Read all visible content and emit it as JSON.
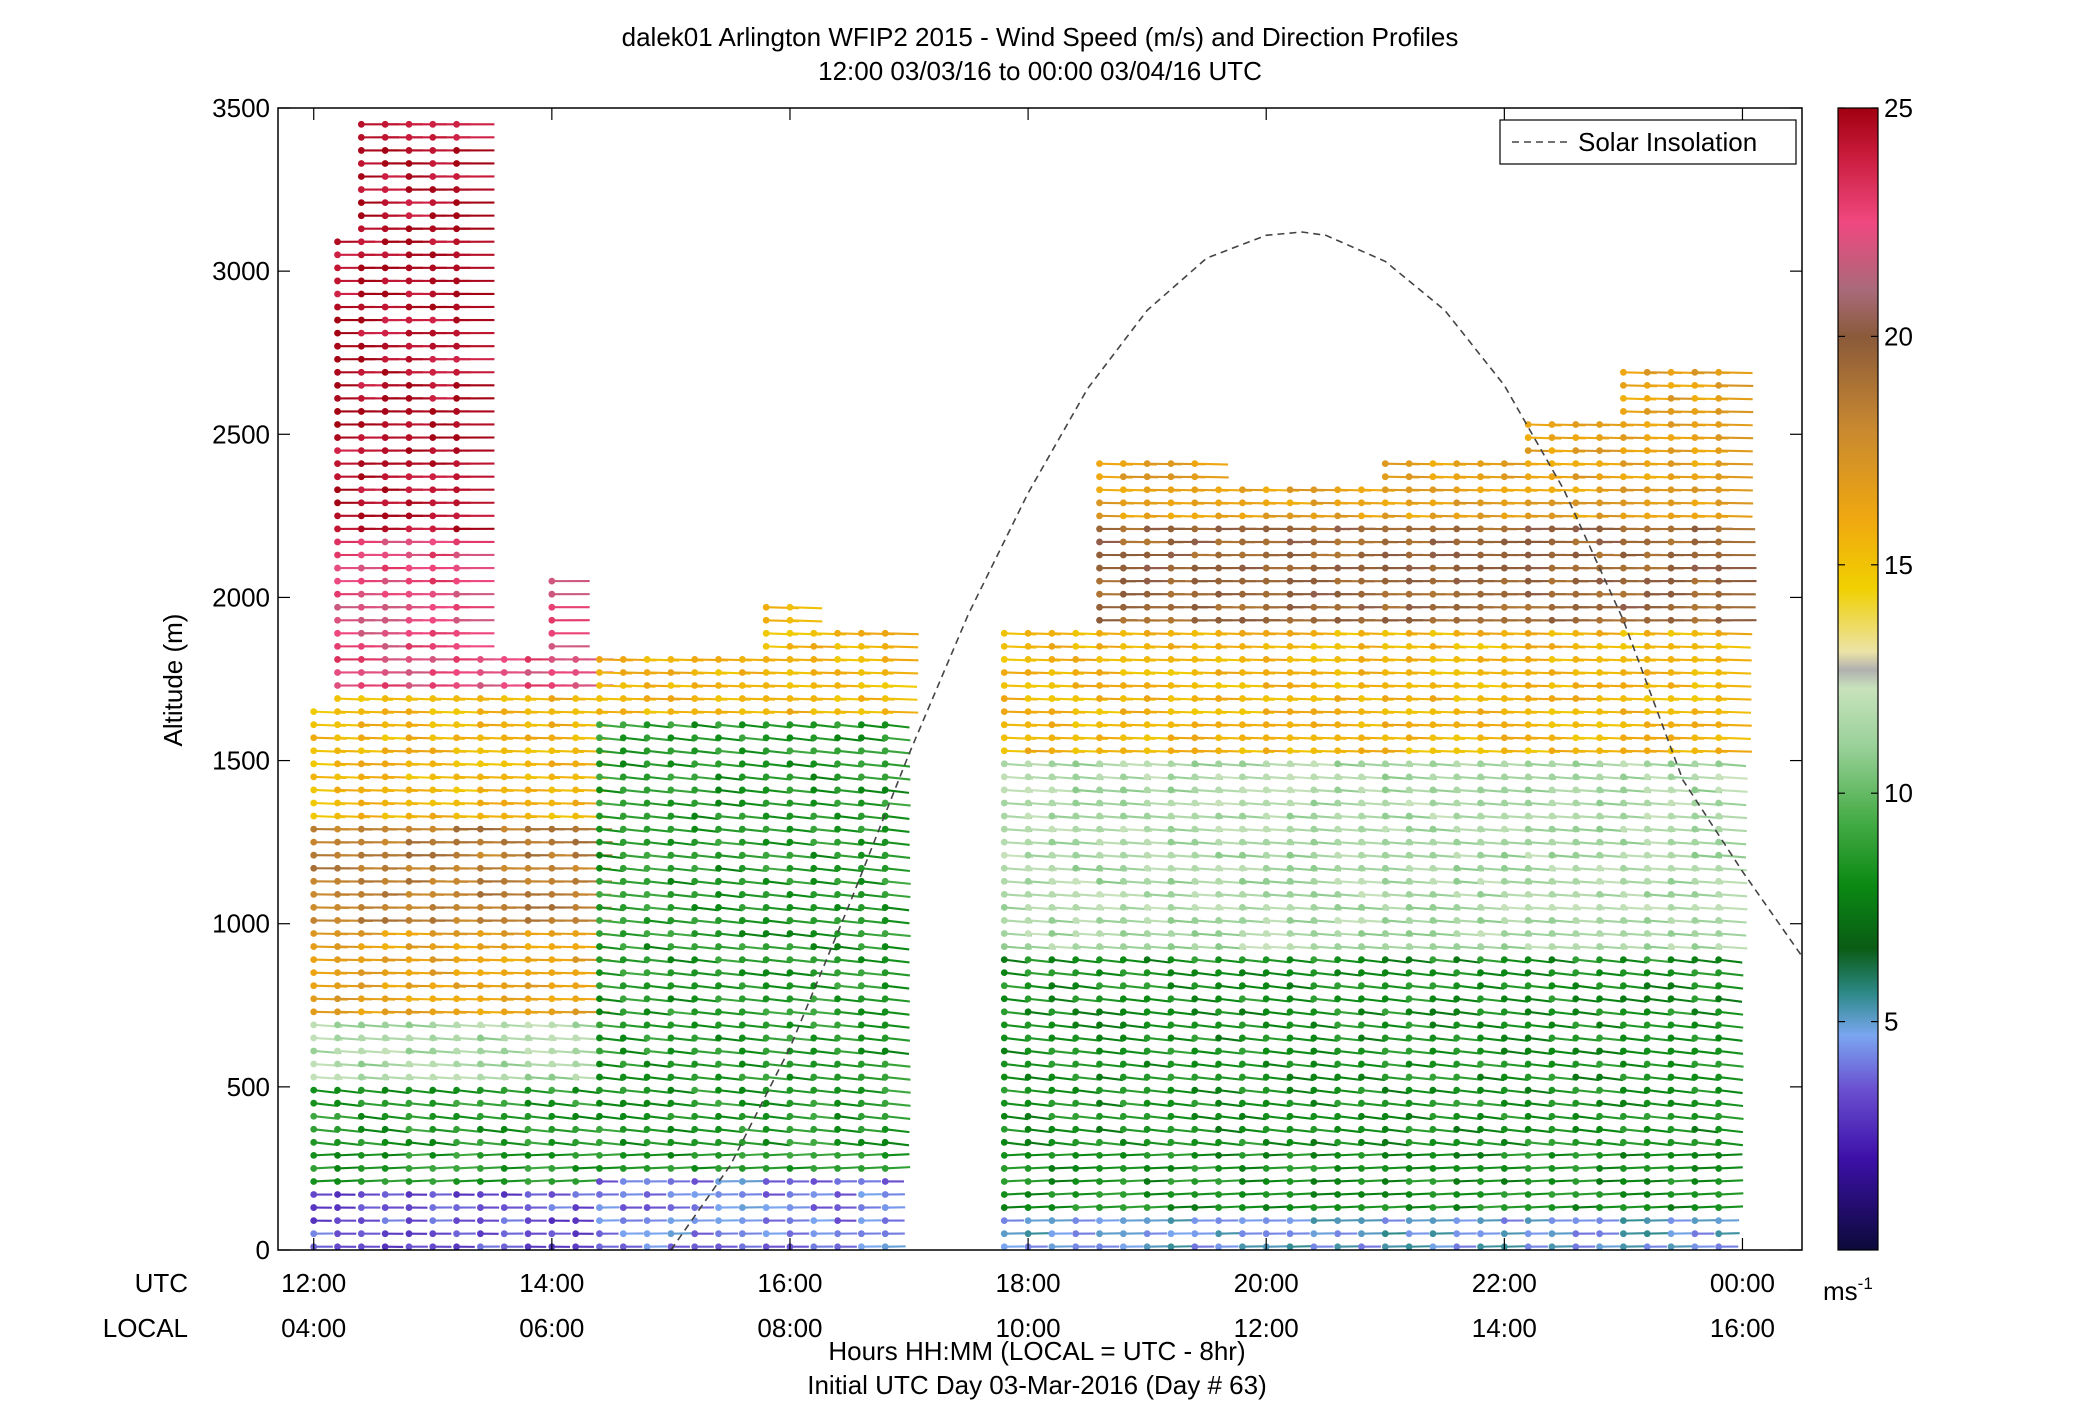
{
  "chart_data": {
    "type": "wind-barb-profile",
    "title": "dalek01 Arlington WFIP2 2015 - Wind Speed (m/s) and Direction Profiles",
    "subtitle": "12:00 03/03/16 to 00:00 03/04/16  UTC",
    "ylabel": "Altitude (m)",
    "ylim": [
      0,
      3500
    ],
    "yticks": [
      0,
      500,
      1000,
      1500,
      2000,
      2500,
      3000,
      3500
    ],
    "xlim_hours": [
      11.7,
      24.5
    ],
    "x_row_labels": [
      "UTC",
      "LOCAL"
    ],
    "xticks": [
      {
        "hour": 12,
        "utc": "12:00",
        "local": "04:00"
      },
      {
        "hour": 14,
        "utc": "14:00",
        "local": "06:00"
      },
      {
        "hour": 16,
        "utc": "16:00",
        "local": "08:00"
      },
      {
        "hour": 18,
        "utc": "18:00",
        "local": "10:00"
      },
      {
        "hour": 20,
        "utc": "20:00",
        "local": "12:00"
      },
      {
        "hour": 22,
        "utc": "22:00",
        "local": "14:00"
      },
      {
        "hour": 24,
        "utc": "00:00",
        "local": "16:00"
      }
    ],
    "xlabel": "Hours HH:MM  (LOCAL = UTC - 8hr)",
    "xlabel2": "Initial UTC Day 03-Mar-2016 (Day # 63)",
    "legend": {
      "label": "Solar Insolation",
      "placement": "top-right"
    },
    "colorbar": {
      "min": 0,
      "max": 25,
      "ticks": [
        5,
        10,
        15,
        20,
        25
      ],
      "unit_base": "ms",
      "unit_exp": "-1",
      "stops": [
        {
          "v": 0,
          "color": "#0c0a3a"
        },
        {
          "v": 2,
          "color": "#3c10a8"
        },
        {
          "v": 3.5,
          "color": "#6a4fd0"
        },
        {
          "v": 4.7,
          "color": "#7aa6f0"
        },
        {
          "v": 5.6,
          "color": "#2e8a8a"
        },
        {
          "v": 6.6,
          "color": "#0a5c14"
        },
        {
          "v": 8,
          "color": "#0b8a14"
        },
        {
          "v": 9.5,
          "color": "#4aae4a"
        },
        {
          "v": 11,
          "color": "#98d098"
        },
        {
          "v": 12.3,
          "color": "#c8e2bc"
        },
        {
          "v": 12.7,
          "color": "#b0b0b0"
        },
        {
          "v": 13.1,
          "color": "#ece3a6"
        },
        {
          "v": 14.5,
          "color": "#f0d000"
        },
        {
          "v": 16,
          "color": "#f0a810"
        },
        {
          "v": 18,
          "color": "#c88830"
        },
        {
          "v": 20,
          "color": "#8a5a3a"
        },
        {
          "v": 21,
          "color": "#a86a7a"
        },
        {
          "v": 22.5,
          "color": "#f04880"
        },
        {
          "v": 24,
          "color": "#c81a3a"
        },
        {
          "v": 25,
          "color": "#a00010"
        }
      ]
    },
    "solar_insolation": {
      "x_hours": [
        15.0,
        15.5,
        16.0,
        16.5,
        17.0,
        17.5,
        18.0,
        18.5,
        19.0,
        19.5,
        20.0,
        20.3,
        20.5,
        21.0,
        21.5,
        22.0,
        22.5,
        23.0,
        23.5,
        24.0,
        24.5
      ],
      "y_m": [
        0,
        260,
        620,
        1060,
        1520,
        1950,
        2320,
        2640,
        2880,
        3040,
        3110,
        3120,
        3110,
        3030,
        2880,
        2650,
        2330,
        1930,
        1440,
        1160,
        900
      ]
    },
    "profiles": {
      "time_start_hour": 12.0,
      "time_end_hour": 23.9,
      "time_step_hour": 0.2,
      "missing_span_hours": [
        17.0,
        17.6
      ],
      "altitude_step_m": 40,
      "barb_direction_deg_from": 240,
      "segments": [
        {
          "t": [
            12.0,
            12.2
          ],
          "top": 1650
        },
        {
          "t": [
            12.2,
            12.4
          ],
          "top": 3100
        },
        {
          "t": [
            12.4,
            13.4
          ],
          "top": 3470
        },
        {
          "t": [
            13.4,
            14.0
          ],
          "top": 1820
        },
        {
          "t": [
            14.0,
            14.2
          ],
          "top": 2080
        },
        {
          "t": [
            14.2,
            15.8
          ],
          "top": 1840
        },
        {
          "t": [
            15.8,
            16.2
          ],
          "top": 1990
        },
        {
          "t": [
            16.2,
            17.0
          ],
          "top": 1900
        },
        {
          "t": [
            17.6,
            18.6
          ],
          "top": 1900
        },
        {
          "t": [
            18.6,
            19.6
          ],
          "top": 2440
        },
        {
          "t": [
            19.6,
            21.0
          ],
          "top": 2360
        },
        {
          "t": [
            21.0,
            22.2
          ],
          "top": 2420
        },
        {
          "t": [
            22.2,
            23.0
          ],
          "top": 2560
        },
        {
          "t": [
            23.0,
            23.9
          ],
          "top": 2700
        }
      ],
      "speed_bands_early": [
        {
          "from": 0,
          "to": 200,
          "speed": 3.5
        },
        {
          "from": 200,
          "to": 500,
          "speed": 8.5
        },
        {
          "from": 500,
          "to": 700,
          "speed": 11.5
        },
        {
          "from": 700,
          "to": 1000,
          "speed": 16.5
        },
        {
          "from": 1000,
          "to": 1300,
          "speed": 18.5
        },
        {
          "from": 1300,
          "to": 1700,
          "speed": 15.5
        },
        {
          "from": 1700,
          "to": 2200,
          "speed": 22.5
        },
        {
          "from": 2200,
          "to": 3500,
          "speed": 24.5
        }
      ],
      "speed_bands_midmorning": [
        {
          "from": 0,
          "to": 250,
          "speed": 4.2
        },
        {
          "from": 250,
          "to": 1650,
          "speed": 8.5
        },
        {
          "from": 1650,
          "to": 2100,
          "speed": 15.5
        }
      ],
      "speed_bands_afternoon": [
        {
          "from": 0,
          "to": 100,
          "speed": 4.8
        },
        {
          "from": 100,
          "to": 900,
          "speed": 8.2
        },
        {
          "from": 900,
          "to": 1500,
          "speed": 11.5
        },
        {
          "from": 1500,
          "to": 1900,
          "speed": 15.5
        },
        {
          "from": 1900,
          "to": 2250,
          "speed": 19.5
        },
        {
          "from": 2250,
          "to": 2800,
          "speed": 16.5
        }
      ]
    }
  }
}
